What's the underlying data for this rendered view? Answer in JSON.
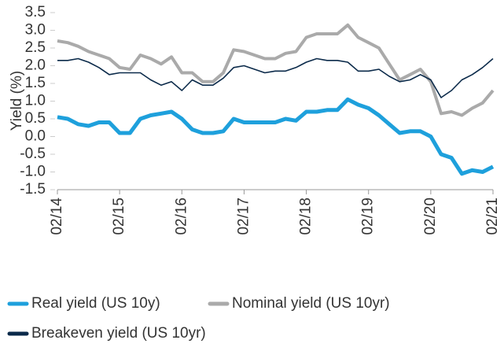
{
  "chart_data": {
    "type": "line",
    "y_label": "Yield (%)",
    "categories": [
      "02/14",
      null,
      null,
      null,
      null,
      null,
      "02/15",
      null,
      null,
      null,
      null,
      null,
      "02/16",
      null,
      null,
      null,
      null,
      null,
      "02/17",
      null,
      null,
      null,
      null,
      null,
      "02/18",
      null,
      null,
      null,
      null,
      null,
      "02/19",
      null,
      null,
      null,
      null,
      null,
      "02/20",
      null,
      null,
      null,
      null,
      null,
      "02/21"
    ],
    "series": [
      {
        "name": "Real yield (US 10y)",
        "color": "#1ea0dc",
        "values": [
          0.55,
          0.5,
          0.35,
          0.3,
          0.4,
          0.4,
          0.1,
          0.1,
          0.5,
          0.6,
          0.65,
          0.7,
          0.5,
          0.2,
          0.1,
          0.1,
          0.15,
          0.5,
          0.4,
          0.4,
          0.4,
          0.4,
          0.5,
          0.45,
          0.7,
          0.7,
          0.75,
          0.75,
          1.05,
          0.9,
          0.8,
          0.6,
          0.35,
          0.1,
          0.15,
          0.15,
          0.0,
          -0.5,
          -0.6,
          -1.05,
          -0.95,
          -1.0,
          -0.85
        ]
      },
      {
        "name": "Nominal yield (US 10yr)",
        "color": "#aaaaaa",
        "values": [
          2.7,
          2.65,
          2.55,
          2.4,
          2.3,
          2.2,
          1.95,
          1.9,
          2.3,
          2.2,
          2.05,
          2.25,
          1.8,
          1.8,
          1.55,
          1.55,
          1.8,
          2.45,
          2.4,
          2.3,
          2.2,
          2.2,
          2.35,
          2.4,
          2.8,
          2.9,
          2.9,
          2.9,
          3.15,
          2.8,
          2.65,
          2.5,
          2.05,
          1.6,
          1.75,
          1.9,
          1.55,
          0.65,
          0.7,
          0.6,
          0.8,
          0.95,
          1.3
        ]
      },
      {
        "name": "Breakeven yield (US 10yr)",
        "color": "#0b2a4a",
        "values": [
          2.15,
          2.15,
          2.2,
          2.1,
          1.95,
          1.75,
          1.8,
          1.8,
          1.8,
          1.6,
          1.45,
          1.55,
          1.3,
          1.6,
          1.45,
          1.45,
          1.65,
          1.95,
          2.0,
          1.9,
          1.8,
          1.85,
          1.85,
          1.95,
          2.1,
          2.2,
          2.15,
          2.15,
          2.1,
          1.85,
          1.85,
          1.9,
          1.7,
          1.55,
          1.6,
          1.75,
          1.6,
          1.1,
          1.3,
          1.6,
          1.75,
          1.95,
          2.2
        ]
      }
    ],
    "ylim": [
      -1.5,
      3.5
    ],
    "yticks": [
      -1.5,
      {
        "value": -1,
        "label": "-1.0"
      },
      -0.5,
      {
        "value": 0,
        "label": "0.0"
      },
      0.5,
      {
        "value": 1,
        "label": "1.0"
      },
      1.5,
      {
        "value": 2,
        "label": "2.0"
      },
      2.5,
      {
        "value": 3,
        "label": "3.0"
      },
      3.5
    ]
  }
}
